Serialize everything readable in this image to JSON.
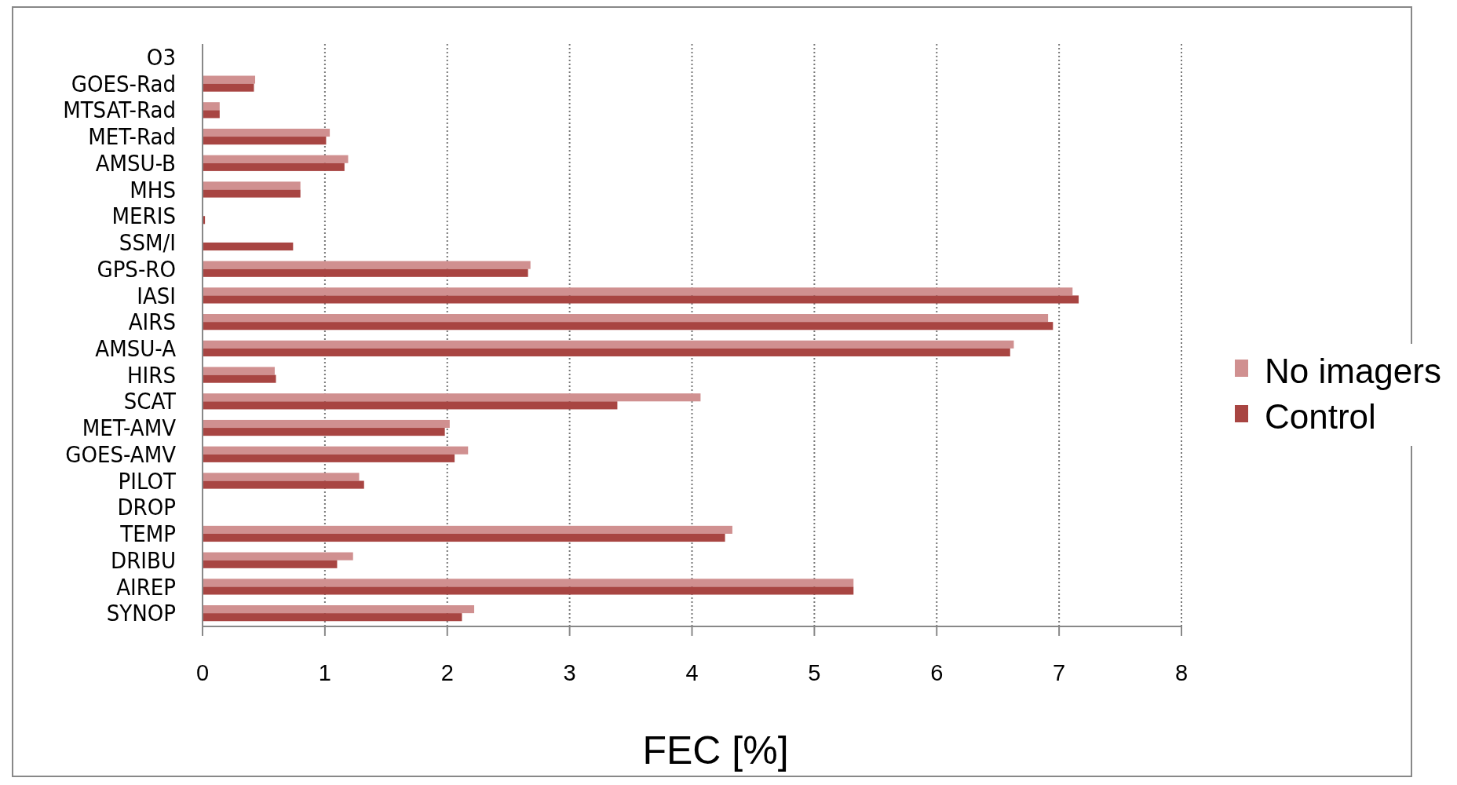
{
  "chart_data": {
    "type": "bar",
    "orientation": "horizontal",
    "xlabel": "FEC [%]",
    "categories": [
      "O3",
      "GOES-Rad",
      "MTSAT-Rad",
      "MET-Rad",
      "AMSU-B",
      "MHS",
      "MERIS",
      "SSM/I",
      "GPS-RO",
      "IASI",
      "AIRS",
      "AMSU-A",
      "HIRS",
      "SCAT",
      "MET-AMV",
      "GOES-AMV",
      "PILOT",
      "DROP",
      "TEMP",
      "DRIBU",
      "AIREP",
      "SYNOP"
    ],
    "series": [
      {
        "name": "No imagers",
        "color": "#d09090",
        "values": [
          0,
          0.43,
          0.14,
          1.04,
          1.19,
          0.8,
          0,
          0,
          2.68,
          7.11,
          6.91,
          6.63,
          0.59,
          4.07,
          2.02,
          2.17,
          1.28,
          0,
          4.33,
          1.23,
          5.32,
          2.22
        ]
      },
      {
        "name": "Control",
        "color": "#a84542",
        "values": [
          0,
          0.42,
          0.14,
          1.01,
          1.16,
          0.8,
          0.02,
          0.74,
          2.66,
          7.16,
          6.95,
          6.6,
          0.6,
          3.39,
          1.98,
          2.06,
          1.32,
          0,
          4.27,
          1.1,
          5.32,
          2.12
        ]
      }
    ],
    "xlim": [
      0,
      8
    ],
    "xticks": [
      0,
      1,
      2,
      3,
      4,
      5,
      6,
      7,
      8
    ],
    "grid": "x",
    "legend": "right"
  }
}
